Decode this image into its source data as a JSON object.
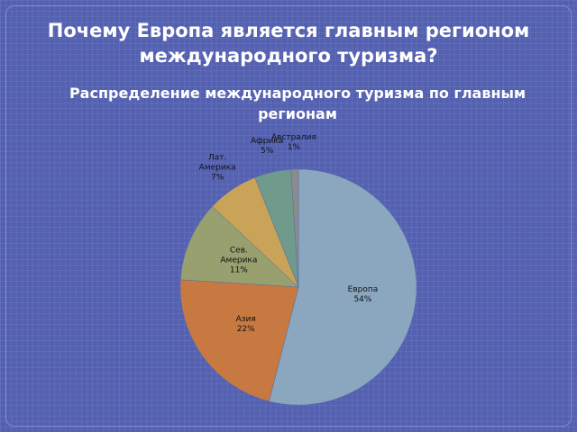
{
  "title": "Почему Европа является главным регионом международного туризма?",
  "chart_data": {
    "type": "pie",
    "title": "Распределение международного туризма по главным регионам",
    "categories": [
      "Европа",
      "Азия",
      "Сев. Америка",
      "Лат. Америка",
      "Африка",
      "Австралия"
    ],
    "values": [
      54,
      22,
      11,
      7,
      5,
      1
    ],
    "value_labels": [
      "54%",
      "22%",
      "11%",
      "7%",
      "5%",
      "1%"
    ],
    "colors": [
      "#8ba7c0",
      "#c87941",
      "#97a06e",
      "#c9a458",
      "#6f9a8c",
      "#8c8c8c"
    ]
  }
}
